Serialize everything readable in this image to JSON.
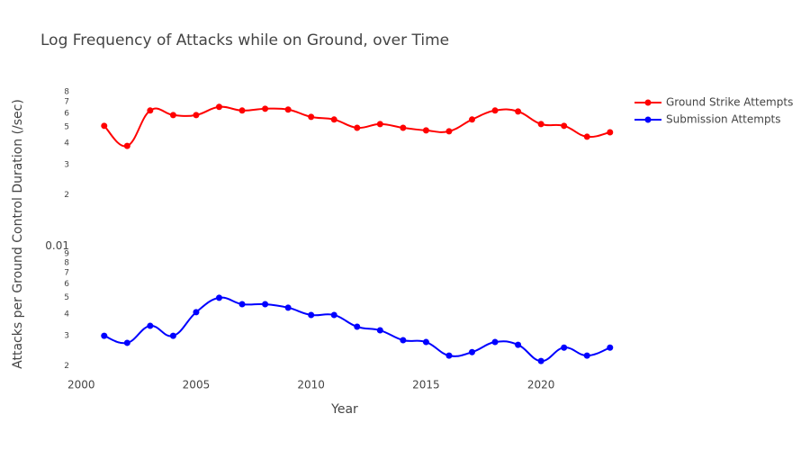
{
  "chart_data": {
    "type": "line",
    "title": "Log Frequency of Attacks while on Ground, over Time",
    "x_label": "Year",
    "y_label": "Attacks per Ground Control Duration (/sec)",
    "y_log": true,
    "grid": false,
    "legend_position": "top-right",
    "line_shape": "spline",
    "x": [
      2001,
      2002,
      2003,
      2004,
      2005,
      2006,
      2007,
      2008,
      2009,
      2010,
      2011,
      2012,
      2013,
      2014,
      2015,
      2016,
      2017,
      2018,
      2019,
      2020,
      2021,
      2022,
      2023
    ],
    "series": [
      {
        "name": "Ground Strike Attempts",
        "color": "#ff0000",
        "values": [
          0.0506,
          0.0386,
          0.0622,
          0.0585,
          0.0585,
          0.0653,
          0.0622,
          0.0637,
          0.063,
          0.0571,
          0.0551,
          0.0493,
          0.0518,
          0.0493,
          0.0476,
          0.047,
          0.0551,
          0.0622,
          0.0614,
          0.0518,
          0.0506,
          0.0437,
          0.0464
        ]
      },
      {
        "name": "Submission Attempts",
        "color": "#0000ff",
        "values": [
          0.00299,
          0.00272,
          0.00342,
          0.00299,
          0.00411,
          0.00499,
          0.00458,
          0.00458,
          0.00437,
          0.00396,
          0.00396,
          0.00338,
          0.00322,
          0.00282,
          0.00275,
          0.00229,
          0.0024,
          0.00275,
          0.00265,
          0.00213,
          0.00255,
          0.00229,
          0.00255
        ]
      }
    ],
    "xlim": [
      1999.6,
      2023.4
    ],
    "xticks": [
      2000,
      2005,
      2010,
      2015,
      2020
    ],
    "ylim": [
      0.0018,
      0.082
    ],
    "yticks": [
      {
        "value": 0.002,
        "label": "2"
      },
      {
        "value": 0.003,
        "label": "3"
      },
      {
        "value": 0.004,
        "label": "4"
      },
      {
        "value": 0.005,
        "label": "5"
      },
      {
        "value": 0.006,
        "label": "6"
      },
      {
        "value": 0.007,
        "label": "7"
      },
      {
        "value": 0.008,
        "label": "8"
      },
      {
        "value": 0.009,
        "label": "9"
      },
      0.01,
      {
        "value": 0.02,
        "label": "2"
      },
      {
        "value": 0.03,
        "label": "3"
      },
      {
        "value": 0.04,
        "label": "4"
      },
      {
        "value": 0.05,
        "label": "5"
      },
      {
        "value": 0.06,
        "label": "6"
      },
      {
        "value": 0.07,
        "label": "7"
      },
      {
        "value": 0.08,
        "label": "8"
      }
    ]
  }
}
